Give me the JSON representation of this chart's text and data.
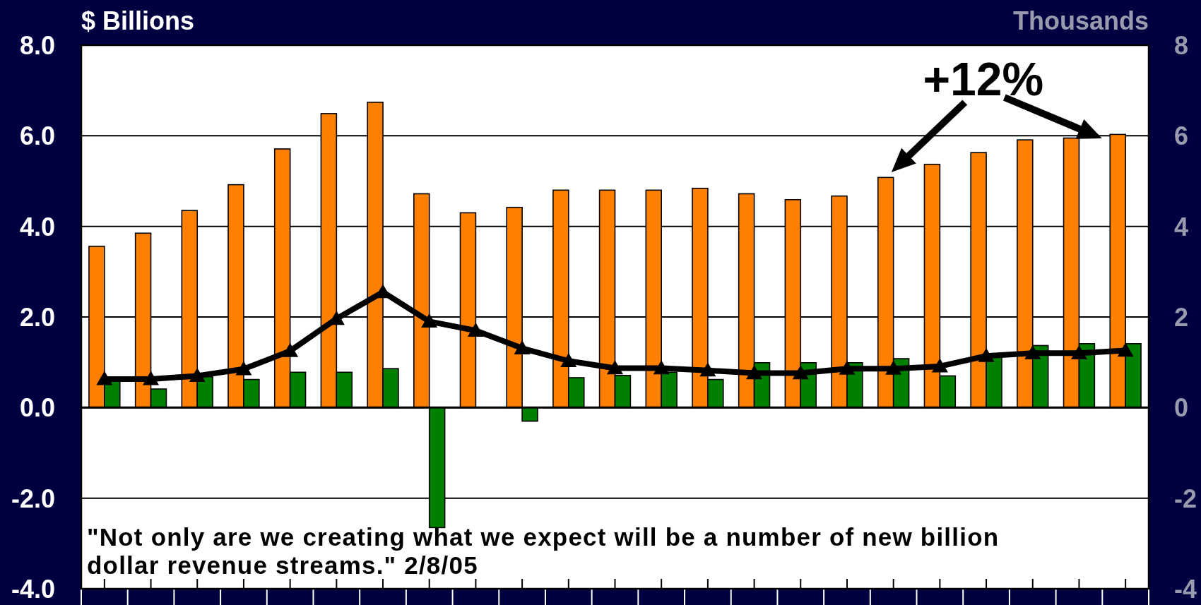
{
  "chart_data": {
    "type": "bar",
    "ylabel": "$ Billions",
    "y2label": "Thousands",
    "categories": [
      null,
      null,
      null,
      null,
      null,
      null,
      null,
      null,
      null,
      null,
      null,
      null,
      null,
      null,
      null,
      null,
      null,
      null,
      null,
      null,
      null,
      null,
      null
    ],
    "series": [
      {
        "color": "#ff8000",
        "values": [
          3.56,
          3.85,
          4.35,
          4.92,
          5.71,
          6.49,
          6.74,
          4.72,
          4.3,
          4.42,
          4.8,
          4.8,
          4.8,
          4.84,
          4.72,
          4.59,
          4.67,
          5.08,
          5.37,
          5.63,
          5.91,
          5.95,
          6.03
        ]
      },
      {
        "color": "#008000",
        "values": [
          0.62,
          0.41,
          0.68,
          0.62,
          0.78,
          0.78,
          0.86,
          -2.65,
          0,
          -0.3,
          0.66,
          0.71,
          0.78,
          0.62,
          0.99,
          0.99,
          0.99,
          1.08,
          0.7,
          1.12,
          1.37,
          1.41,
          1.41
        ]
      },
      {
        "type": "line",
        "axis": "y2",
        "color": "#000000",
        "marker": "triangle",
        "values": [
          0.63,
          0.63,
          0.7,
          0.85,
          1.25,
          1.96,
          2.55,
          1.9,
          1.7,
          1.31,
          1.03,
          0.87,
          0.87,
          0.82,
          0.76,
          0.76,
          0.86,
          0.86,
          0.91,
          1.14,
          1.2,
          1.2,
          1.26
        ]
      }
    ],
    "ylim": [
      -4,
      8
    ],
    "yticks": [
      {
        "value": -4,
        "label": "-4.0"
      },
      {
        "value": -2,
        "label": "-2.0"
      },
      {
        "value": 0,
        "label": "0.0"
      },
      {
        "value": 2,
        "label": "2.0"
      },
      {
        "value": 4,
        "label": "4.0"
      },
      {
        "value": 6,
        "label": "6.0"
      },
      {
        "value": 8,
        "label": "8.0"
      }
    ],
    "y2lim": [
      -4,
      8
    ],
    "y2ticks": [
      -4,
      -2,
      0,
      2,
      4,
      6,
      8
    ],
    "grid": "y",
    "annotations": [
      "+12%",
      "\"Not only are we creating what we expect will be a number of new billion dollar revenue streams.\" 2/8/05"
    ]
  }
}
